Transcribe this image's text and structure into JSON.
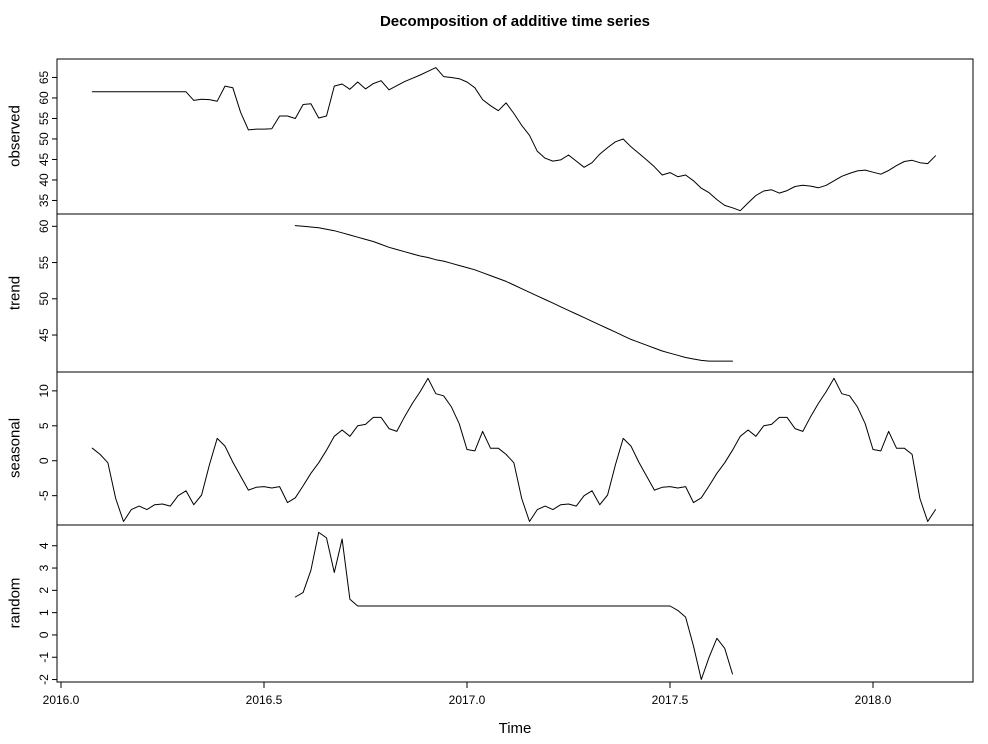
{
  "title": "Decomposition of additive time series",
  "xlabel": "Time",
  "colors": {
    "line": "#000000",
    "axis": "#000000",
    "background": "#ffffff"
  },
  "chart_data": {
    "type": "line",
    "title": "Decomposition of additive time series",
    "xlabel": "Time",
    "layout": "4 stacked panels sharing one x axis, grid off, no legend, black 1px lines, boxed panels",
    "xlim": [
      2015.99,
      2018.25
    ],
    "x_step": 0.0192308,
    "x_ticks": [
      2016.0,
      2016.5,
      2017.0,
      2017.5,
      2018.0
    ],
    "x_tick_labels": [
      "2016.0",
      "2016.5",
      "2017.0",
      "2017.5",
      "2018.0"
    ],
    "panels": [
      {
        "name": "observed",
        "ylabel": "observed",
        "yticks": [
          35,
          40,
          45,
          50,
          55,
          60,
          65
        ],
        "ylim": [
          31.7,
          69.5
        ],
        "t0": 2016.077,
        "values": [
          61.5,
          61.5,
          61.5,
          61.5,
          61.5,
          61.5,
          61.5,
          61.5,
          61.5,
          61.5,
          61.5,
          61.5,
          61.5,
          59.4,
          59.7,
          59.6,
          59.2,
          62.9,
          62.5,
          56.5,
          52.2,
          52.4,
          52.4,
          52.5,
          55.6,
          55.6,
          55.0,
          58.4,
          58.6,
          55.1,
          55.6,
          62.9,
          63.4,
          62.1,
          63.9,
          62.2,
          63.5,
          64.2,
          62.0,
          63.0,
          64.0,
          64.8,
          65.6,
          66.5,
          67.4,
          65.2,
          65.0,
          64.7,
          63.9,
          62.5,
          59.6,
          58.1,
          56.9,
          58.8,
          56.2,
          53.3,
          50.9,
          47.0,
          45.3,
          44.6,
          44.9,
          46.1,
          44.6,
          43.1,
          44.2,
          46.3,
          47.9,
          49.3,
          50.0,
          48.1,
          46.5,
          44.9,
          43.2,
          41.2,
          41.8,
          40.8,
          41.2,
          39.8,
          38.0,
          36.9,
          35.2,
          33.8,
          33.2,
          32.5,
          34.4,
          36.2,
          37.3,
          37.6,
          36.8,
          37.4,
          38.4,
          38.7,
          38.5,
          38.1,
          38.7,
          39.8,
          40.9,
          41.6,
          42.2,
          42.4,
          41.9,
          41.4,
          42.3,
          43.5,
          44.5,
          44.8,
          44.2,
          44.0,
          45.9
        ]
      },
      {
        "name": "trend",
        "ylabel": "trend",
        "yticks": [
          45,
          50,
          55,
          60
        ],
        "ylim": [
          39.9,
          61.7
        ],
        "t0": 2016.577,
        "values": [
          60.1,
          60.0,
          59.9,
          59.8,
          59.6,
          59.4,
          59.1,
          58.8,
          58.5,
          58.2,
          57.9,
          57.5,
          57.1,
          56.8,
          56.5,
          56.2,
          55.9,
          55.7,
          55.4,
          55.2,
          54.9,
          54.6,
          54.3,
          54.0,
          53.6,
          53.2,
          52.8,
          52.4,
          51.9,
          51.4,
          50.9,
          50.4,
          49.9,
          49.4,
          48.9,
          48.4,
          47.9,
          47.4,
          46.9,
          46.4,
          45.9,
          45.4,
          44.9,
          44.4,
          44.0,
          43.6,
          43.2,
          42.8,
          42.5,
          42.2,
          41.9,
          41.7,
          41.5,
          41.4,
          41.4,
          41.4,
          41.4
        ]
      },
      {
        "name": "seasonal",
        "ylabel": "seasonal",
        "yticks": [
          -5,
          0,
          5,
          10
        ],
        "ylim": [
          -9.2,
          12.7
        ],
        "t0": 2016.077,
        "values": [
          1.8,
          0.9,
          -0.3,
          -5.4,
          -8.7,
          -7.0,
          -6.5,
          -7.0,
          -6.3,
          -6.2,
          -6.5,
          -5.0,
          -4.3,
          -6.3,
          -4.9,
          -0.6,
          3.2,
          2.1,
          -0.2,
          -2.2,
          -4.2,
          -3.8,
          -3.7,
          -3.9,
          -3.7,
          -6.0,
          -5.3,
          -3.6,
          -1.8,
          -0.3,
          1.5,
          3.5,
          4.4,
          3.5,
          5.0,
          5.2,
          6.2,
          6.2,
          4.6,
          4.2,
          6.3,
          8.2,
          9.9,
          11.8,
          9.6,
          9.3,
          7.7,
          5.3,
          1.6,
          1.4,
          4.2,
          1.8,
          1.8,
          0.9,
          -0.3,
          -5.4,
          -8.7,
          -7.0,
          -6.5,
          -7.0,
          -6.3,
          -6.2,
          -6.5,
          -5.0,
          -4.3,
          -6.3,
          -4.9,
          -0.6,
          3.2,
          2.1,
          -0.2,
          -2.2,
          -4.2,
          -3.8,
          -3.7,
          -3.9,
          -3.7,
          -6.0,
          -5.3,
          -3.6,
          -1.8,
          -0.3,
          1.5,
          3.5,
          4.4,
          3.5,
          5.0,
          5.2,
          6.2,
          6.2,
          4.6,
          4.2,
          6.3,
          8.2,
          9.9,
          11.8,
          9.6,
          9.3,
          7.7,
          5.3,
          1.6,
          1.4,
          4.2,
          1.8,
          1.8,
          0.9,
          -5.4,
          -8.7,
          -7.0
        ]
      },
      {
        "name": "random",
        "ylabel": "random",
        "yticks": [
          -2,
          -1,
          0,
          1,
          2,
          3,
          4
        ],
        "ylim": [
          -2.11,
          4.93
        ],
        "t0": 2016.577,
        "values": [
          1.7,
          1.9,
          2.9,
          4.6,
          4.35,
          2.8,
          4.3,
          1.6,
          1.3,
          1.3,
          1.3,
          1.3,
          1.3,
          1.3,
          1.3,
          1.3,
          1.3,
          1.3,
          1.3,
          1.3,
          1.3,
          1.3,
          1.3,
          1.3,
          1.3,
          1.3,
          1.3,
          1.3,
          1.3,
          1.3,
          1.3,
          1.3,
          1.3,
          1.3,
          1.3,
          1.3,
          1.3,
          1.3,
          1.3,
          1.3,
          1.3,
          1.3,
          1.3,
          1.3,
          1.3,
          1.3,
          1.3,
          1.3,
          1.3,
          1.1,
          0.8,
          -0.5,
          -2.0,
          -1.0,
          -0.15,
          -0.6,
          -1.75
        ]
      }
    ]
  }
}
